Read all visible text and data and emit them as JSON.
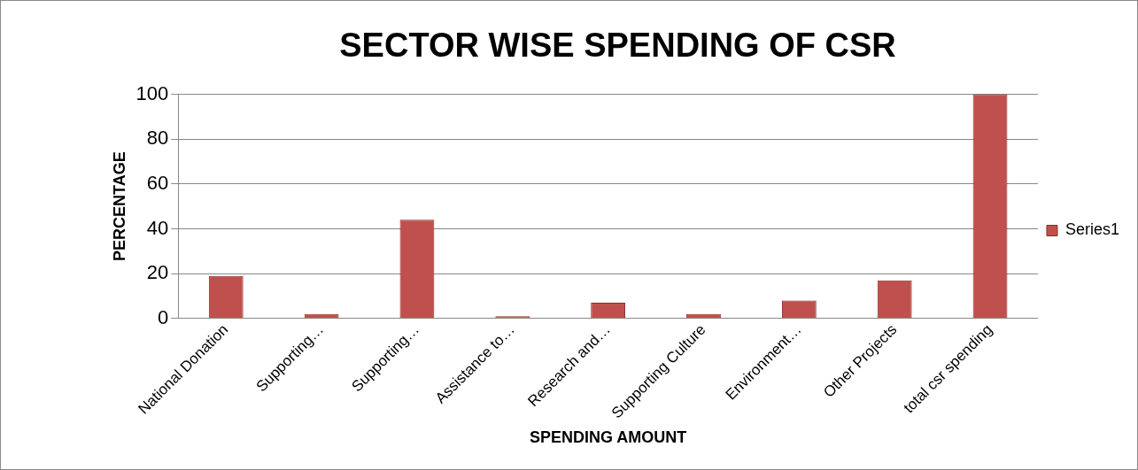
{
  "chart_data": {
    "type": "bar",
    "title": "SECTOR WISE SPENDING OF CSR",
    "xlabel": "SPENDING AMOUNT",
    "ylabel": "PERCENTAGE",
    "categories": [
      "National Donation",
      "Supporting…",
      "Supporting…",
      "Assistance to…",
      "Research and…",
      "Supporting Culture",
      "Environment…",
      "Other Projects",
      "total csr spending"
    ],
    "series": [
      {
        "name": "Series1",
        "color": "#c0504d",
        "values": [
          19,
          2,
          44,
          1,
          7,
          2,
          8,
          17,
          100
        ]
      }
    ],
    "ylim": [
      0,
      100
    ],
    "yticks": [
      0,
      20,
      40,
      60,
      80,
      100
    ],
    "grid": "y",
    "legend": "right"
  }
}
